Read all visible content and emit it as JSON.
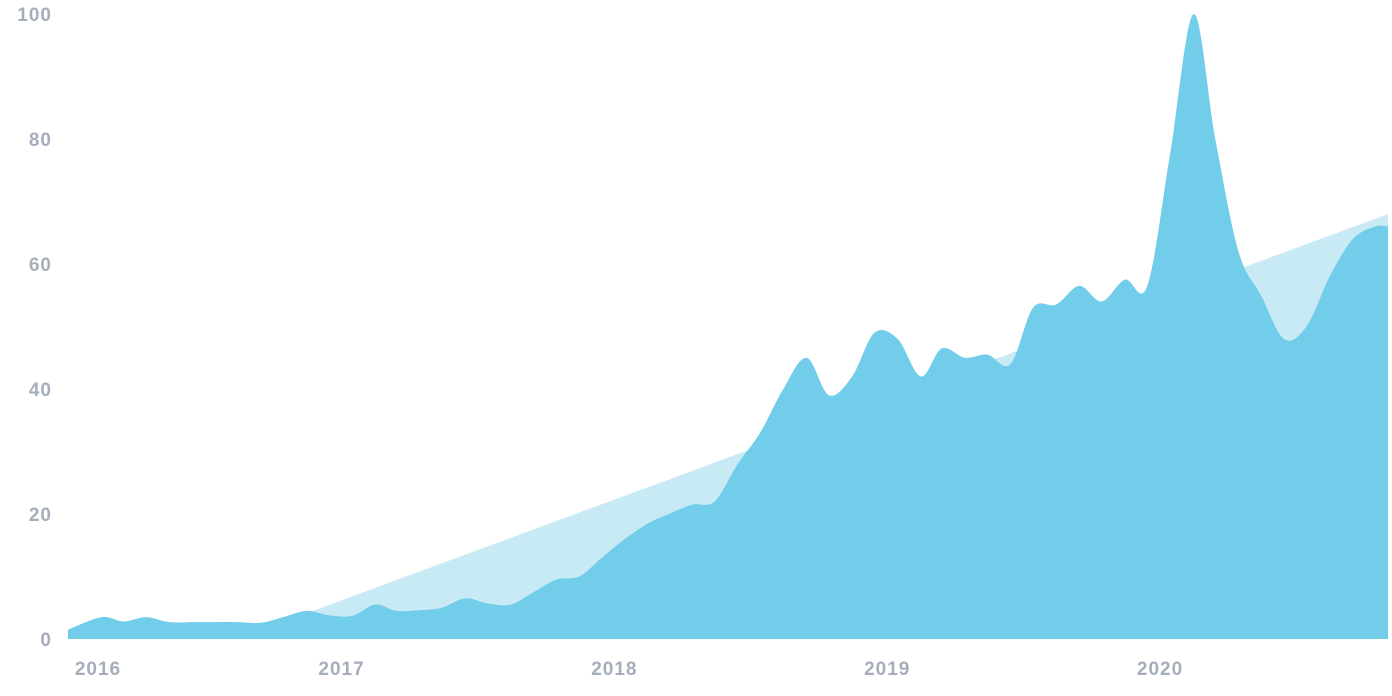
{
  "chart_data": {
    "type": "area",
    "title": "",
    "xlabel": "",
    "ylabel": "",
    "ylim": [
      0,
      100
    ],
    "xlim": [
      "2016-01-01",
      "2020-11-01"
    ],
    "y_ticks": [
      0,
      20,
      40,
      60,
      80,
      100
    ],
    "x_ticks": [
      {
        "label": "2016",
        "date": "2016-01-01"
      },
      {
        "label": "2017",
        "date": "2017-01-01"
      },
      {
        "label": "2018",
        "date": "2018-01-01"
      },
      {
        "label": "2019",
        "date": "2019-01-01"
      },
      {
        "label": "2020",
        "date": "2020-01-01"
      }
    ],
    "grid": false,
    "legend": "none",
    "colors": {
      "series": "#72cdea",
      "trend": "#c8eaf5",
      "tick_label": "#a6adbb"
    },
    "series": [
      {
        "role": "interest",
        "x": [
          "2016-01-01",
          "2016-02-15",
          "2016-03-15",
          "2016-04-15",
          "2016-05-15",
          "2016-06-15",
          "2016-07-15",
          "2016-08-15",
          "2016-09-15",
          "2016-10-15",
          "2016-11-15",
          "2016-12-15",
          "2017-01-15",
          "2017-02-15",
          "2017-03-15",
          "2017-04-15",
          "2017-05-15",
          "2017-06-15",
          "2017-07-15",
          "2017-08-15",
          "2017-09-15",
          "2017-10-15",
          "2017-11-15",
          "2017-12-15",
          "2018-01-15",
          "2018-02-15",
          "2018-03-15",
          "2018-04-15",
          "2018-05-15",
          "2018-06-15",
          "2018-07-15",
          "2018-08-15",
          "2018-09-15",
          "2018-10-15",
          "2018-11-15",
          "2018-12-15",
          "2019-01-15",
          "2019-02-15",
          "2019-03-15",
          "2019-04-15",
          "2019-05-15",
          "2019-06-15",
          "2019-07-15",
          "2019-08-15",
          "2019-09-15",
          "2019-10-15",
          "2019-11-15",
          "2019-12-15",
          "2020-01-15",
          "2020-02-15",
          "2020-03-15",
          "2020-04-15",
          "2020-05-15",
          "2020-06-15",
          "2020-07-15",
          "2020-08-15",
          "2020-09-15",
          "2020-10-15",
          "2020-11-01"
        ],
        "values": [
          1.5,
          3.5,
          2.8,
          3.5,
          2.7,
          2.7,
          2.7,
          2.7,
          2.6,
          3.5,
          4.5,
          3.8,
          3.7,
          5.5,
          4.5,
          4.6,
          5.0,
          6.5,
          5.7,
          5.5,
          7.5,
          9.5,
          10.0,
          13.0,
          16.0,
          18.5,
          20.0,
          21.5,
          22.0,
          28.0,
          33.0,
          40.0,
          45.0,
          39.0,
          42.0,
          49.0,
          48.0,
          42.0,
          46.5,
          45.0,
          45.5,
          44.0,
          53.0,
          53.5,
          56.5,
          54.0,
          57.5,
          56.5,
          78.0,
          100.0,
          80.0,
          62.0,
          55.0,
          48.0,
          50.0,
          58.0,
          64.0,
          66.0,
          66.0
        ]
      },
      {
        "role": "trend",
        "x": [
          "2016-11-01",
          "2020-11-01"
        ],
        "values": [
          3.5,
          68.0
        ]
      }
    ]
  }
}
